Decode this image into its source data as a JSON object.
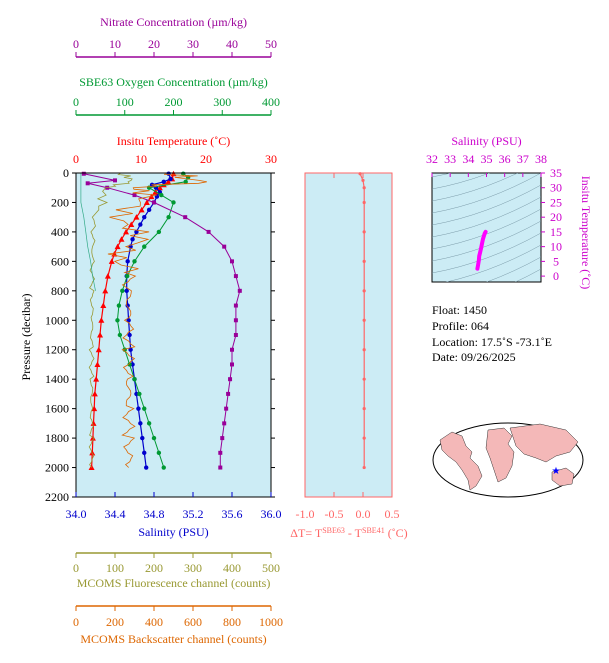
{
  "colors": {
    "nitrate": "#990099",
    "oxygen": "#009933",
    "temperature": "#ff0000",
    "salinity": "#0000cc",
    "fluorescence": "#999933",
    "backscatter": "#dd6600",
    "deltaT": "#ff6666",
    "ts_salinity": "#cc00cc",
    "plot_bg": "#ccecf5",
    "ts_curve": "#ff00ff",
    "land": "#f4b8b8",
    "ocean": "#ffffff",
    "float_marker": "#0000ff"
  },
  "labels": {
    "pressure_axis": "Pressure (decibar)",
    "deltaT_main": "ΔT= T",
    "deltaT_sup1": "SBE63",
    "deltaT_mid": " - T",
    "deltaT_sup2": "SBE41",
    "deltaT_unit": " (˚C)"
  },
  "info": {
    "float": "Float:  1450",
    "profile": "Profile:  064",
    "location": "Location:  17.5˚S  -73.1˚E",
    "date": "Date:  09/26/2025"
  },
  "chart_data": [
    {
      "type": "line",
      "ylabel": "Pressure (decibar)",
      "ylim": [
        2200,
        0
      ],
      "yticks": [
        "0",
        "200",
        "400",
        "600",
        "800",
        "1000",
        "1200",
        "1400",
        "1600",
        "1800",
        "2000",
        "2200"
      ],
      "axes": {
        "nitrate": {
          "label": "Nitrate Concentration (µm/kg)",
          "range": [
            0,
            50
          ],
          "ticks": [
            "0",
            "10",
            "20",
            "30",
            "40",
            "50"
          ],
          "position": "top"
        },
        "oxygen": {
          "label": "SBE63 Oxygen Concentration (µm/kg)",
          "range": [
            0,
            400
          ],
          "ticks": [
            "0",
            "100",
            "200",
            "300",
            "400"
          ],
          "position": "top"
        },
        "temperature": {
          "label": "Insitu Temperature (˚C)",
          "range": [
            0,
            30
          ],
          "ticks": [
            "0",
            "10",
            "20",
            "30"
          ],
          "position": "top"
        },
        "salinity": {
          "label": "Salinity (PSU)",
          "range": [
            34.0,
            36.0
          ],
          "ticks": [
            "34.0",
            "34.4",
            "34.8",
            "35.2",
            "35.6",
            "36.0"
          ],
          "position": "bottom"
        },
        "fluorescence": {
          "label": "MCOMS Fluorescence channel (counts)",
          "range": [
            0,
            500
          ],
          "ticks": [
            "0",
            "100",
            "200",
            "300",
            "400",
            "500"
          ],
          "position": "bottom"
        },
        "backscatter": {
          "label": "MCOMS Backscatter channel (counts)",
          "range": [
            0,
            1000
          ],
          "ticks": [
            "0",
            "200",
            "400",
            "600",
            "800",
            "1000"
          ],
          "position": "bottom"
        }
      },
      "series": [
        {
          "key": "temperature",
          "pressure": [
            5,
            40,
            60,
            80,
            100,
            130,
            160,
            200,
            250,
            300,
            350,
            400,
            450,
            500,
            550,
            600,
            700,
            800,
            900,
            1000,
            1100,
            1200,
            1300,
            1400,
            1500,
            1600,
            1700,
            1800,
            1900,
            2000
          ],
          "values": [
            15.0,
            14.8,
            14.2,
            13.5,
            12.9,
            12.2,
            11.6,
            10.9,
            10.1,
            9.3,
            8.5,
            7.7,
            7.0,
            6.4,
            5.9,
            5.5,
            4.9,
            4.5,
            4.2,
            3.9,
            3.7,
            3.5,
            3.3,
            3.1,
            2.9,
            2.8,
            2.7,
            2.6,
            2.5,
            2.4
          ]
        },
        {
          "key": "salinity",
          "pressure": [
            5,
            40,
            60,
            80,
            100,
            130,
            160,
            200,
            250,
            300,
            350,
            400,
            450,
            500,
            600,
            700,
            800,
            900,
            1000,
            1100,
            1200,
            1300,
            1400,
            1500,
            1600,
            1700,
            1800,
            1900,
            2000
          ],
          "values": [
            34.95,
            34.97,
            34.9,
            34.78,
            34.82,
            34.86,
            34.83,
            34.8,
            34.75,
            34.7,
            34.66,
            34.62,
            34.58,
            34.56,
            34.53,
            34.52,
            34.52,
            34.53,
            34.54,
            34.55,
            34.56,
            34.58,
            34.6,
            34.62,
            34.64,
            34.66,
            34.68,
            34.7,
            34.72
          ]
        },
        {
          "key": "oxygen",
          "pressure": [
            5,
            30,
            60,
            100,
            150,
            200,
            300,
            400,
            500,
            600,
            700,
            800,
            900,
            1000,
            1100,
            1200,
            1300,
            1400,
            1500,
            1600,
            1700,
            1800,
            1900,
            2000
          ],
          "values": [
            220,
            230,
            225,
            150,
            175,
            200,
            190,
            170,
            140,
            120,
            105,
            95,
            88,
            85,
            90,
            100,
            110,
            120,
            130,
            140,
            150,
            160,
            170,
            180
          ]
        },
        {
          "key": "nitrate",
          "pressure": [
            5,
            50,
            70,
            100,
            150,
            200,
            300,
            400,
            500,
            600,
            700,
            800,
            900,
            1000,
            1100,
            1200,
            1300,
            1400,
            1500,
            1600,
            1700,
            1800,
            1900,
            2000
          ],
          "values": [
            2,
            10,
            3,
            8,
            15,
            20,
            28,
            34,
            38,
            40,
            41,
            42,
            41,
            41,
            41,
            40,
            40,
            39.5,
            39,
            38.5,
            38,
            37.5,
            37,
            37
          ]
        },
        {
          "key": "fluorescence",
          "pressure": [
            0,
            20,
            40,
            60,
            80,
            100,
            150,
            200,
            250,
            300,
            400,
            500,
            600,
            800,
            1000,
            1200,
            1400,
            1600,
            1800,
            2000
          ],
          "values": [
            115,
            118,
            125,
            140,
            120,
            90,
            65,
            55,
            50,
            46,
            44,
            43,
            42,
            41,
            41,
            40,
            40,
            40,
            40,
            40
          ],
          "note": "noisy"
        },
        {
          "key": "backscatter",
          "pressure": [
            0,
            20,
            40,
            60,
            80,
            100,
            120,
            150,
            200,
            250,
            300,
            350,
            400,
            450,
            500,
            550,
            600,
            650,
            700,
            800,
            1000,
            1200,
            1400,
            1600,
            1800,
            2000
          ],
          "values": [
            460,
            520,
            480,
            700,
            500,
            360,
            320,
            300,
            290,
            285,
            280,
            278,
            276,
            275,
            275,
            274,
            274,
            273,
            272,
            270,
            270,
            270,
            270,
            270,
            270,
            270
          ],
          "note": "noisy with spikes"
        },
        {
          "key": "chlorophyll_shallow",
          "pressure": [
            0,
            100,
            200,
            300,
            400,
            500,
            600,
            700,
            800
          ],
          "values": [
            34.05,
            34.05,
            34.05,
            34.08,
            34.1,
            34.12,
            34.15,
            34.17,
            34.2
          ],
          "note": "thin green line near left edge"
        }
      ]
    },
    {
      "type": "line",
      "title": "deltaT",
      "xlim": [
        -1.0,
        0.5
      ],
      "xticks": [
        "-1.0",
        "-0.5",
        "0.0",
        "0.5"
      ],
      "ylim": [
        2200,
        0
      ],
      "series": [
        {
          "key": "deltaT",
          "pressure": [
            5,
            50,
            100,
            200,
            400,
            600,
            800,
            1000,
            1200,
            1400,
            1600,
            1800,
            2000
          ],
          "values": [
            -0.05,
            0.0,
            0.02,
            0.02,
            0.02,
            0.02,
            0.02,
            0.02,
            0.02,
            0.02,
            0.02,
            0.02,
            0.02
          ]
        }
      ]
    },
    {
      "type": "scatter",
      "title": "Salinity (PSU)",
      "xlabel": "Salinity (PSU)",
      "ylabel": "Insitu Temperature (˚C)",
      "xlim": [
        32,
        38
      ],
      "ylim": [
        -2,
        35
      ],
      "xticks": [
        "32",
        "33",
        "34",
        "35",
        "36",
        "37",
        "38"
      ],
      "yticks": [
        "0",
        "5",
        "10",
        "15",
        "20",
        "25",
        "30",
        "35"
      ],
      "series": [
        {
          "key": "ts",
          "x": [
            34.5,
            34.52,
            34.55,
            34.58,
            34.6,
            34.65,
            34.7,
            34.75,
            34.8,
            34.85,
            34.9,
            34.95
          ],
          "y": [
            2.5,
            3.2,
            4.2,
            5.5,
            6.8,
            8.0,
            9.5,
            11.0,
            12.5,
            13.5,
            14.5,
            15.0
          ]
        }
      ]
    }
  ]
}
